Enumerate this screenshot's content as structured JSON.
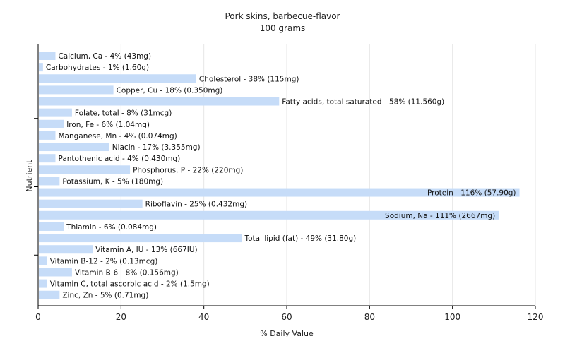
{
  "chart_data": {
    "type": "bar",
    "orientation": "horizontal",
    "title": "Pork skins, barbecue-flavor",
    "subtitle": "100 grams",
    "xlabel": "% Daily Value",
    "ylabel": "Nutrient",
    "xlim": [
      0,
      120
    ],
    "xticks": [
      0,
      20,
      40,
      60,
      80,
      100,
      120
    ],
    "grid": true,
    "bar_color": "#c6dcf8",
    "grid_color": "#e6e6e6",
    "categories": [
      "Calcium, Ca",
      "Carbohydrates",
      "Cholesterol",
      "Copper, Cu",
      "Fatty acids, total saturated",
      "Folate, total",
      "Iron, Fe",
      "Manganese, Mn",
      "Niacin",
      "Pantothenic acid",
      "Phosphorus, P",
      "Potassium, K",
      "Protein",
      "Riboflavin",
      "Sodium, Na",
      "Thiamin",
      "Total lipid (fat)",
      "Vitamin A, IU",
      "Vitamin B-12",
      "Vitamin B-6",
      "Vitamin C, total ascorbic acid",
      "Zinc, Zn"
    ],
    "values": [
      4,
      1,
      38,
      18,
      58,
      8,
      6,
      4,
      17,
      4,
      22,
      5,
      116,
      25,
      111,
      6,
      49,
      13,
      2,
      8,
      2,
      5
    ],
    "labels": [
      "Calcium, Ca - 4% (43mg)",
      "Carbohydrates - 1% (1.60g)",
      "Cholesterol - 38% (115mg)",
      "Copper, Cu - 18% (0.350mg)",
      "Fatty acids, total saturated - 58% (11.560g)",
      "Folate, total - 8% (31mcg)",
      "Iron, Fe - 6% (1.04mg)",
      "Manganese, Mn - 4% (0.074mg)",
      "Niacin - 17% (3.355mg)",
      "Pantothenic acid - 4% (0.430mg)",
      "Phosphorus, P - 22% (220mg)",
      "Potassium, K - 5% (180mg)",
      "Protein - 116% (57.90g)",
      "Riboflavin - 25% (0.432mg)",
      "Sodium, Na - 111% (2667mg)",
      "Thiamin - 6% (0.084mg)",
      "Total lipid (fat) - 49% (31.80g)",
      "Vitamin A, IU - 13% (667IU)",
      "Vitamin B-12 - 2% (0.13mcg)",
      "Vitamin B-6 - 8% (0.156mg)",
      "Vitamin C, total ascorbic acid - 2% (1.5mg)",
      "Zinc, Zn - 5% (0.71mg)"
    ]
  }
}
